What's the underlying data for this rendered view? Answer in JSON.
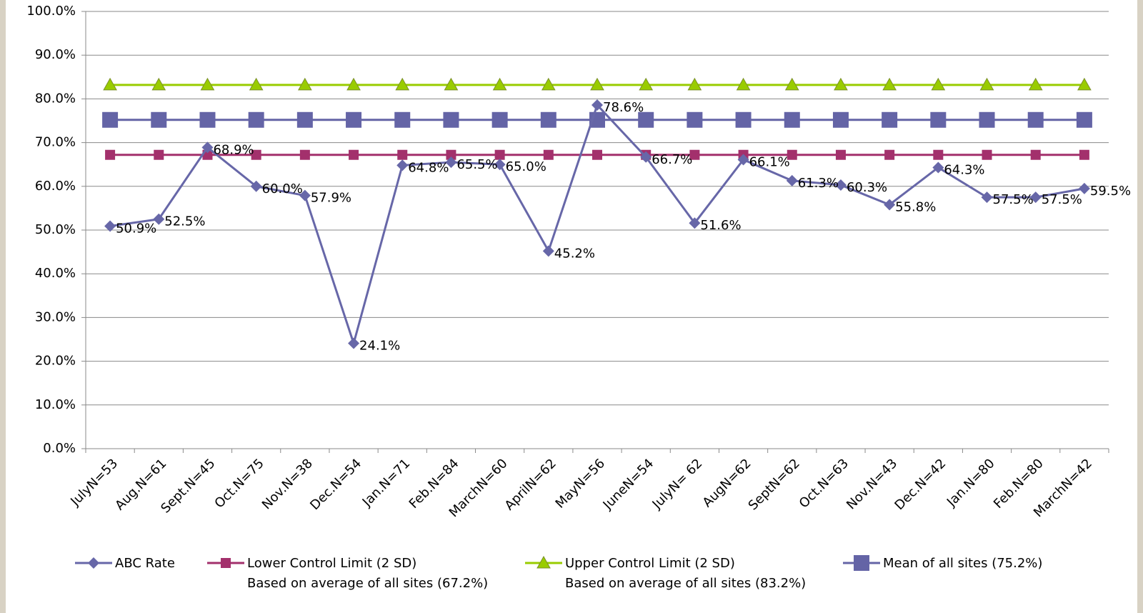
{
  "chart_data": {
    "type": "line",
    "categories": [
      "JulyN=53",
      "Aug.N=61",
      "Sept.N=45",
      "Oct.N=75",
      "Nov.N=38",
      "Dec.N=54",
      "Jan.N=71",
      "Feb.N=84",
      "MarchN=60",
      "AprilN=62",
      "MayN=56",
      "JuneN=54",
      "JulyN= 62",
      "AugN=62",
      "SeptN=62",
      "Oct.N=63",
      "Nov.N=43",
      "Dec.N=42",
      "Jan.N=80",
      "Feb.N=80",
      "MarchN=42"
    ],
    "series": [
      {
        "name": "ABC Rate",
        "color": "#6767a8",
        "marker": "diamond",
        "values": [
          50.9,
          52.5,
          68.9,
          60.0,
          57.9,
          24.1,
          64.8,
          65.5,
          65.0,
          45.2,
          78.6,
          66.7,
          51.6,
          66.1,
          61.3,
          60.3,
          55.8,
          64.3,
          57.5,
          57.5,
          59.5
        ],
        "value_labels": [
          "50.9%",
          "52.5%",
          "68.9%",
          "60.0%",
          "57.9%",
          "24.1%",
          "64.8%",
          "65.5%",
          "65.0%",
          "45.2%",
          "78.6%",
          "66.7%",
          "51.6%",
          "66.1%",
          "61.3%",
          "60.3%",
          "55.8%",
          "64.3%",
          "57.5%",
          "57.5%",
          "59.5%"
        ]
      },
      {
        "name": "Lower Control Limit (2 SD)\nBased on average of all sites (67.2%)",
        "color": "#a3306c",
        "marker": "square",
        "values": [
          67.2,
          67.2,
          67.2,
          67.2,
          67.2,
          67.2,
          67.2,
          67.2,
          67.2,
          67.2,
          67.2,
          67.2,
          67.2,
          67.2,
          67.2,
          67.2,
          67.2,
          67.2,
          67.2,
          67.2,
          67.2
        ]
      },
      {
        "name": "Upper Control Limit (2 SD)\nBased on average of all sites (83.2%)",
        "color": "#99cc00",
        "marker": "triangle",
        "values": [
          83.2,
          83.2,
          83.2,
          83.2,
          83.2,
          83.2,
          83.2,
          83.2,
          83.2,
          83.2,
          83.2,
          83.2,
          83.2,
          83.2,
          83.2,
          83.2,
          83.2,
          83.2,
          83.2,
          83.2,
          83.2
        ]
      },
      {
        "name": "Mean of all sites (75.2%)",
        "color": "#6464a6",
        "marker": "big-square",
        "values": [
          75.2,
          75.2,
          75.2,
          75.2,
          75.2,
          75.2,
          75.2,
          75.2,
          75.2,
          75.2,
          75.2,
          75.2,
          75.2,
          75.2,
          75.2,
          75.2,
          75.2,
          75.2,
          75.2,
          75.2,
          75.2
        ]
      }
    ],
    "ylim": [
      0,
      100
    ],
    "yticks": [
      {
        "value": 0,
        "label": "0.0%"
      },
      {
        "value": 10,
        "label": "10.0%"
      },
      {
        "value": 20,
        "label": "20.0%"
      },
      {
        "value": 30,
        "label": "30.0%"
      },
      {
        "value": 40,
        "label": "40.0%"
      },
      {
        "value": 50,
        "label": "50.0%"
      },
      {
        "value": 60,
        "label": "60.0%"
      },
      {
        "value": 70,
        "label": "70.0%"
      },
      {
        "value": 80,
        "label": "80.0%"
      },
      {
        "value": 90,
        "label": "90.0%"
      },
      {
        "value": 100,
        "label": "100.0%"
      }
    ],
    "grid": true,
    "legend": "bottom"
  }
}
